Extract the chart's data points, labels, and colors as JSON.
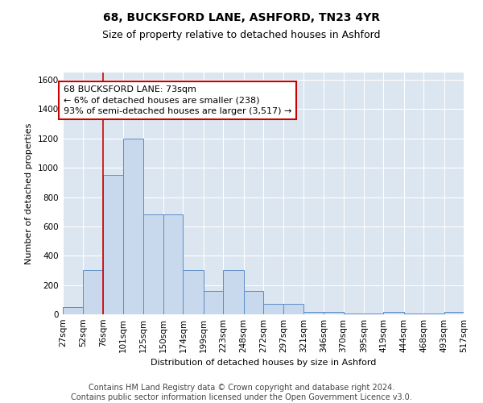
{
  "title": "68, BUCKSFORD LANE, ASHFORD, TN23 4YR",
  "subtitle": "Size of property relative to detached houses in Ashford",
  "xlabel": "Distribution of detached houses by size in Ashford",
  "ylabel": "Number of detached properties",
  "bar_color": "#c8d9ee",
  "bar_edge_color": "#5b8cc8",
  "plot_bg_color": "#dce6f1",
  "annotation_text": "68 BUCKSFORD LANE: 73sqm\n← 6% of detached houses are smaller (238)\n93% of semi-detached houses are larger (3,517) →",
  "vline_x": 76,
  "vline_color": "#cc0000",
  "bin_edges": [
    27,
    52,
    76,
    101,
    125,
    150,
    174,
    199,
    223,
    248,
    272,
    297,
    321,
    346,
    370,
    395,
    419,
    444,
    468,
    493,
    517
  ],
  "bar_heights": [
    50,
    300,
    950,
    1200,
    680,
    680,
    300,
    160,
    300,
    160,
    70,
    70,
    15,
    15,
    5,
    5,
    15,
    5,
    5,
    15
  ],
  "tick_labels": [
    "27sqm",
    "52sqm",
    "76sqm",
    "101sqm",
    "125sqm",
    "150sqm",
    "174sqm",
    "199sqm",
    "223sqm",
    "248sqm",
    "272sqm",
    "297sqm",
    "321sqm",
    "346sqm",
    "370sqm",
    "395sqm",
    "419sqm",
    "444sqm",
    "468sqm",
    "493sqm",
    "517sqm"
  ],
  "ylim": [
    0,
    1650
  ],
  "yticks": [
    0,
    200,
    400,
    600,
    800,
    1000,
    1200,
    1400,
    1600
  ],
  "footer_text": "Contains HM Land Registry data © Crown copyright and database right 2024.\nContains public sector information licensed under the Open Government Licence v3.0.",
  "title_fontsize": 10,
  "subtitle_fontsize": 9,
  "axis_fontsize": 8,
  "tick_fontsize": 7.5,
  "annotation_fontsize": 8,
  "footer_fontsize": 7
}
